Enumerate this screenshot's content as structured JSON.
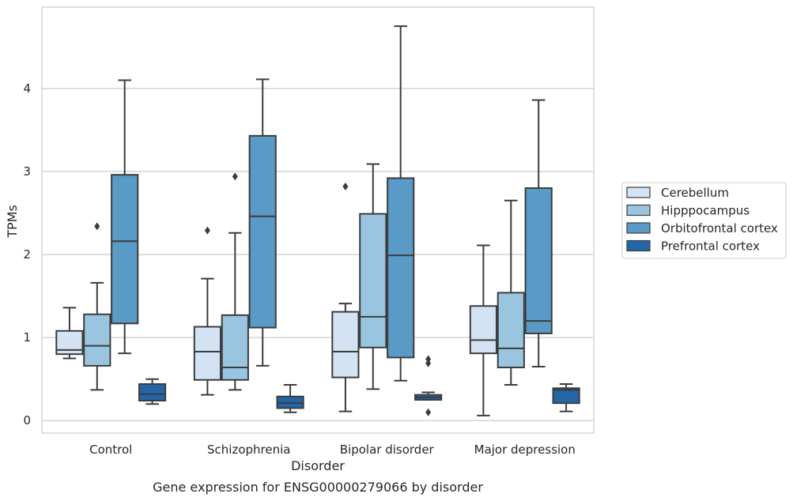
{
  "chart_data": {
    "type": "box",
    "caption": "Gene expression for ENSG00000279066 by disorder",
    "xlabel": "Disorder",
    "ylabel": "TPMs",
    "ylim": [
      -0.15,
      4.98
    ],
    "yticks": [
      0,
      1,
      2,
      3,
      4
    ],
    "grid": true,
    "legend_position": "right",
    "categories": [
      "Control",
      "Schizophrenia",
      "Bipolar disorder",
      "Major depression"
    ],
    "series": [
      {
        "name": "Cerebellum",
        "color": "#d3e3f3",
        "boxes": [
          {
            "whisker_low": 0.75,
            "q1": 0.8,
            "median": 0.85,
            "q3": 1.08,
            "whisker_high": 1.36,
            "outliers": []
          },
          {
            "whisker_low": 0.31,
            "q1": 0.49,
            "median": 0.83,
            "q3": 1.13,
            "whisker_high": 1.71,
            "outliers": [
              2.29
            ]
          },
          {
            "whisker_low": 0.11,
            "q1": 0.52,
            "median": 0.83,
            "q3": 1.31,
            "whisker_high": 1.41,
            "outliers": [
              2.82
            ]
          },
          {
            "whisker_low": 0.06,
            "q1": 0.81,
            "median": 0.97,
            "q3": 1.38,
            "whisker_high": 2.11,
            "outliers": []
          }
        ]
      },
      {
        "name": "Hipppocampus",
        "color": "#9ac5e0",
        "boxes": [
          {
            "whisker_low": 0.37,
            "q1": 0.66,
            "median": 0.9,
            "q3": 1.28,
            "whisker_high": 1.66,
            "outliers": [
              2.34
            ]
          },
          {
            "whisker_low": 0.37,
            "q1": 0.49,
            "median": 0.64,
            "q3": 1.27,
            "whisker_high": 2.26,
            "outliers": [
              2.94
            ]
          },
          {
            "whisker_low": 0.38,
            "q1": 0.88,
            "median": 1.25,
            "q3": 2.49,
            "whisker_high": 3.09,
            "outliers": []
          },
          {
            "whisker_low": 0.43,
            "q1": 0.64,
            "median": 0.87,
            "q3": 1.54,
            "whisker_high": 2.65,
            "outliers": []
          }
        ]
      },
      {
        "name": "Orbitofrontal cortex",
        "color": "#5a9ac6",
        "boxes": [
          {
            "whisker_low": 0.81,
            "q1": 1.17,
            "median": 2.16,
            "q3": 2.96,
            "whisker_high": 4.1,
            "outliers": []
          },
          {
            "whisker_low": 0.66,
            "q1": 1.12,
            "median": 2.46,
            "q3": 3.43,
            "whisker_high": 4.11,
            "outliers": []
          },
          {
            "whisker_low": 0.48,
            "q1": 0.76,
            "median": 1.99,
            "q3": 2.92,
            "whisker_high": 4.75,
            "outliers": []
          },
          {
            "whisker_low": 0.65,
            "q1": 1.05,
            "median": 1.2,
            "q3": 2.8,
            "whisker_high": 3.86,
            "outliers": []
          }
        ]
      },
      {
        "name": "Prefrontal cortex",
        "color": "#2366a8",
        "boxes": [
          {
            "whisker_low": 0.2,
            "q1": 0.24,
            "median": 0.32,
            "q3": 0.44,
            "whisker_high": 0.5,
            "outliers": []
          },
          {
            "whisker_low": 0.1,
            "q1": 0.15,
            "median": 0.21,
            "q3": 0.29,
            "whisker_high": 0.43,
            "outliers": []
          },
          {
            "whisker_low": 0.25,
            "q1": 0.25,
            "median": 0.28,
            "q3": 0.31,
            "whisker_high": 0.34,
            "outliers": [
              0.1,
              0.69,
              0.74
            ]
          },
          {
            "whisker_low": 0.11,
            "q1": 0.21,
            "median": 0.37,
            "q3": 0.39,
            "whisker_high": 0.44,
            "outliers": []
          }
        ]
      }
    ]
  }
}
